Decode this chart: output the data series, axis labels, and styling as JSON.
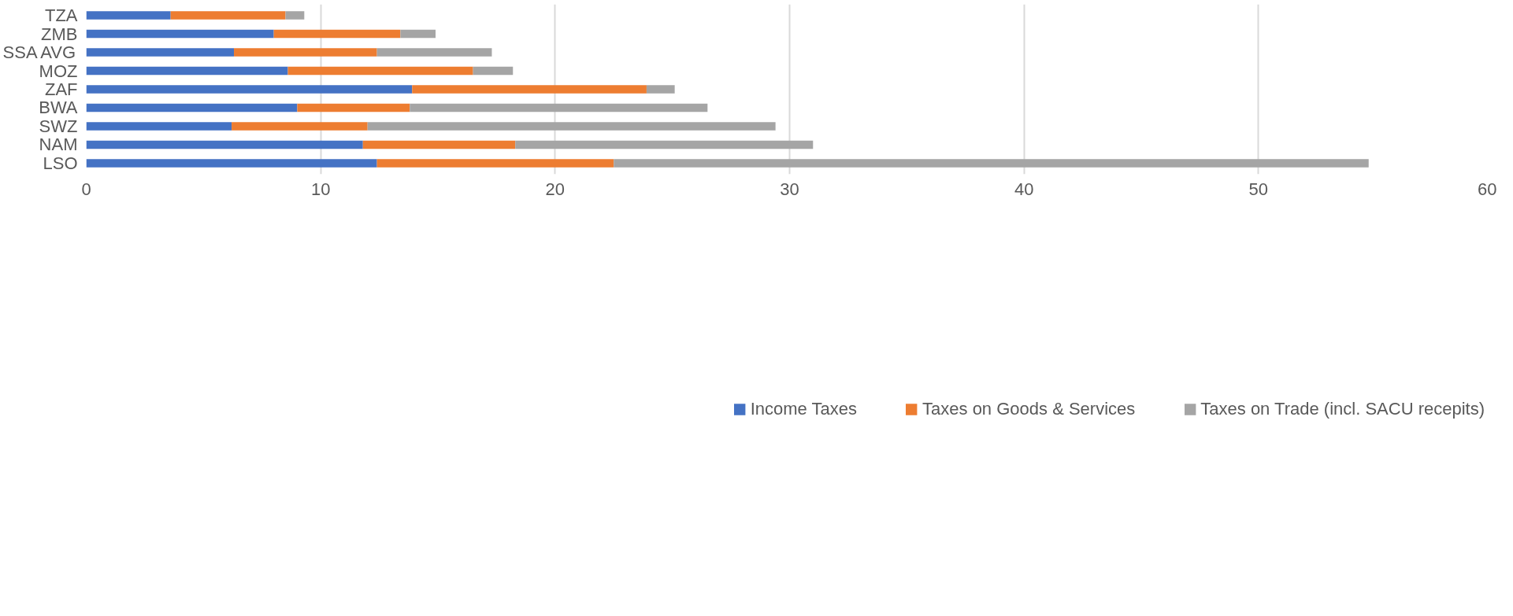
{
  "chart_data": {
    "type": "bar",
    "orientation": "horizontal",
    "stacked": true,
    "categories": [
      "TZA",
      "ZMB",
      "SSA AVG",
      "MOZ",
      "ZAF",
      "BWA",
      "SWZ",
      "NAM",
      "LSO"
    ],
    "series": [
      {
        "name": "Income Taxes",
        "color": "#4472c4",
        "values": [
          3.6,
          8.0,
          6.3,
          8.6,
          13.9,
          9.0,
          6.2,
          11.8,
          12.4
        ]
      },
      {
        "name": "Taxes on Goods & Services",
        "color": "#ed7d31",
        "values": [
          4.9,
          5.4,
          6.1,
          7.9,
          10.0,
          4.8,
          5.8,
          6.5,
          10.1
        ]
      },
      {
        "name": "Taxes on Trade (incl. SACU recepits)",
        "color": "#a5a5a5",
        "values": [
          0.8,
          1.5,
          4.9,
          1.7,
          1.2,
          12.7,
          17.4,
          12.7,
          32.2
        ]
      }
    ],
    "xlim": [
      0,
      60
    ],
    "xticks": [
      0,
      10,
      20,
      30,
      40,
      50,
      60
    ],
    "grid": "x",
    "legend": "bottom"
  }
}
